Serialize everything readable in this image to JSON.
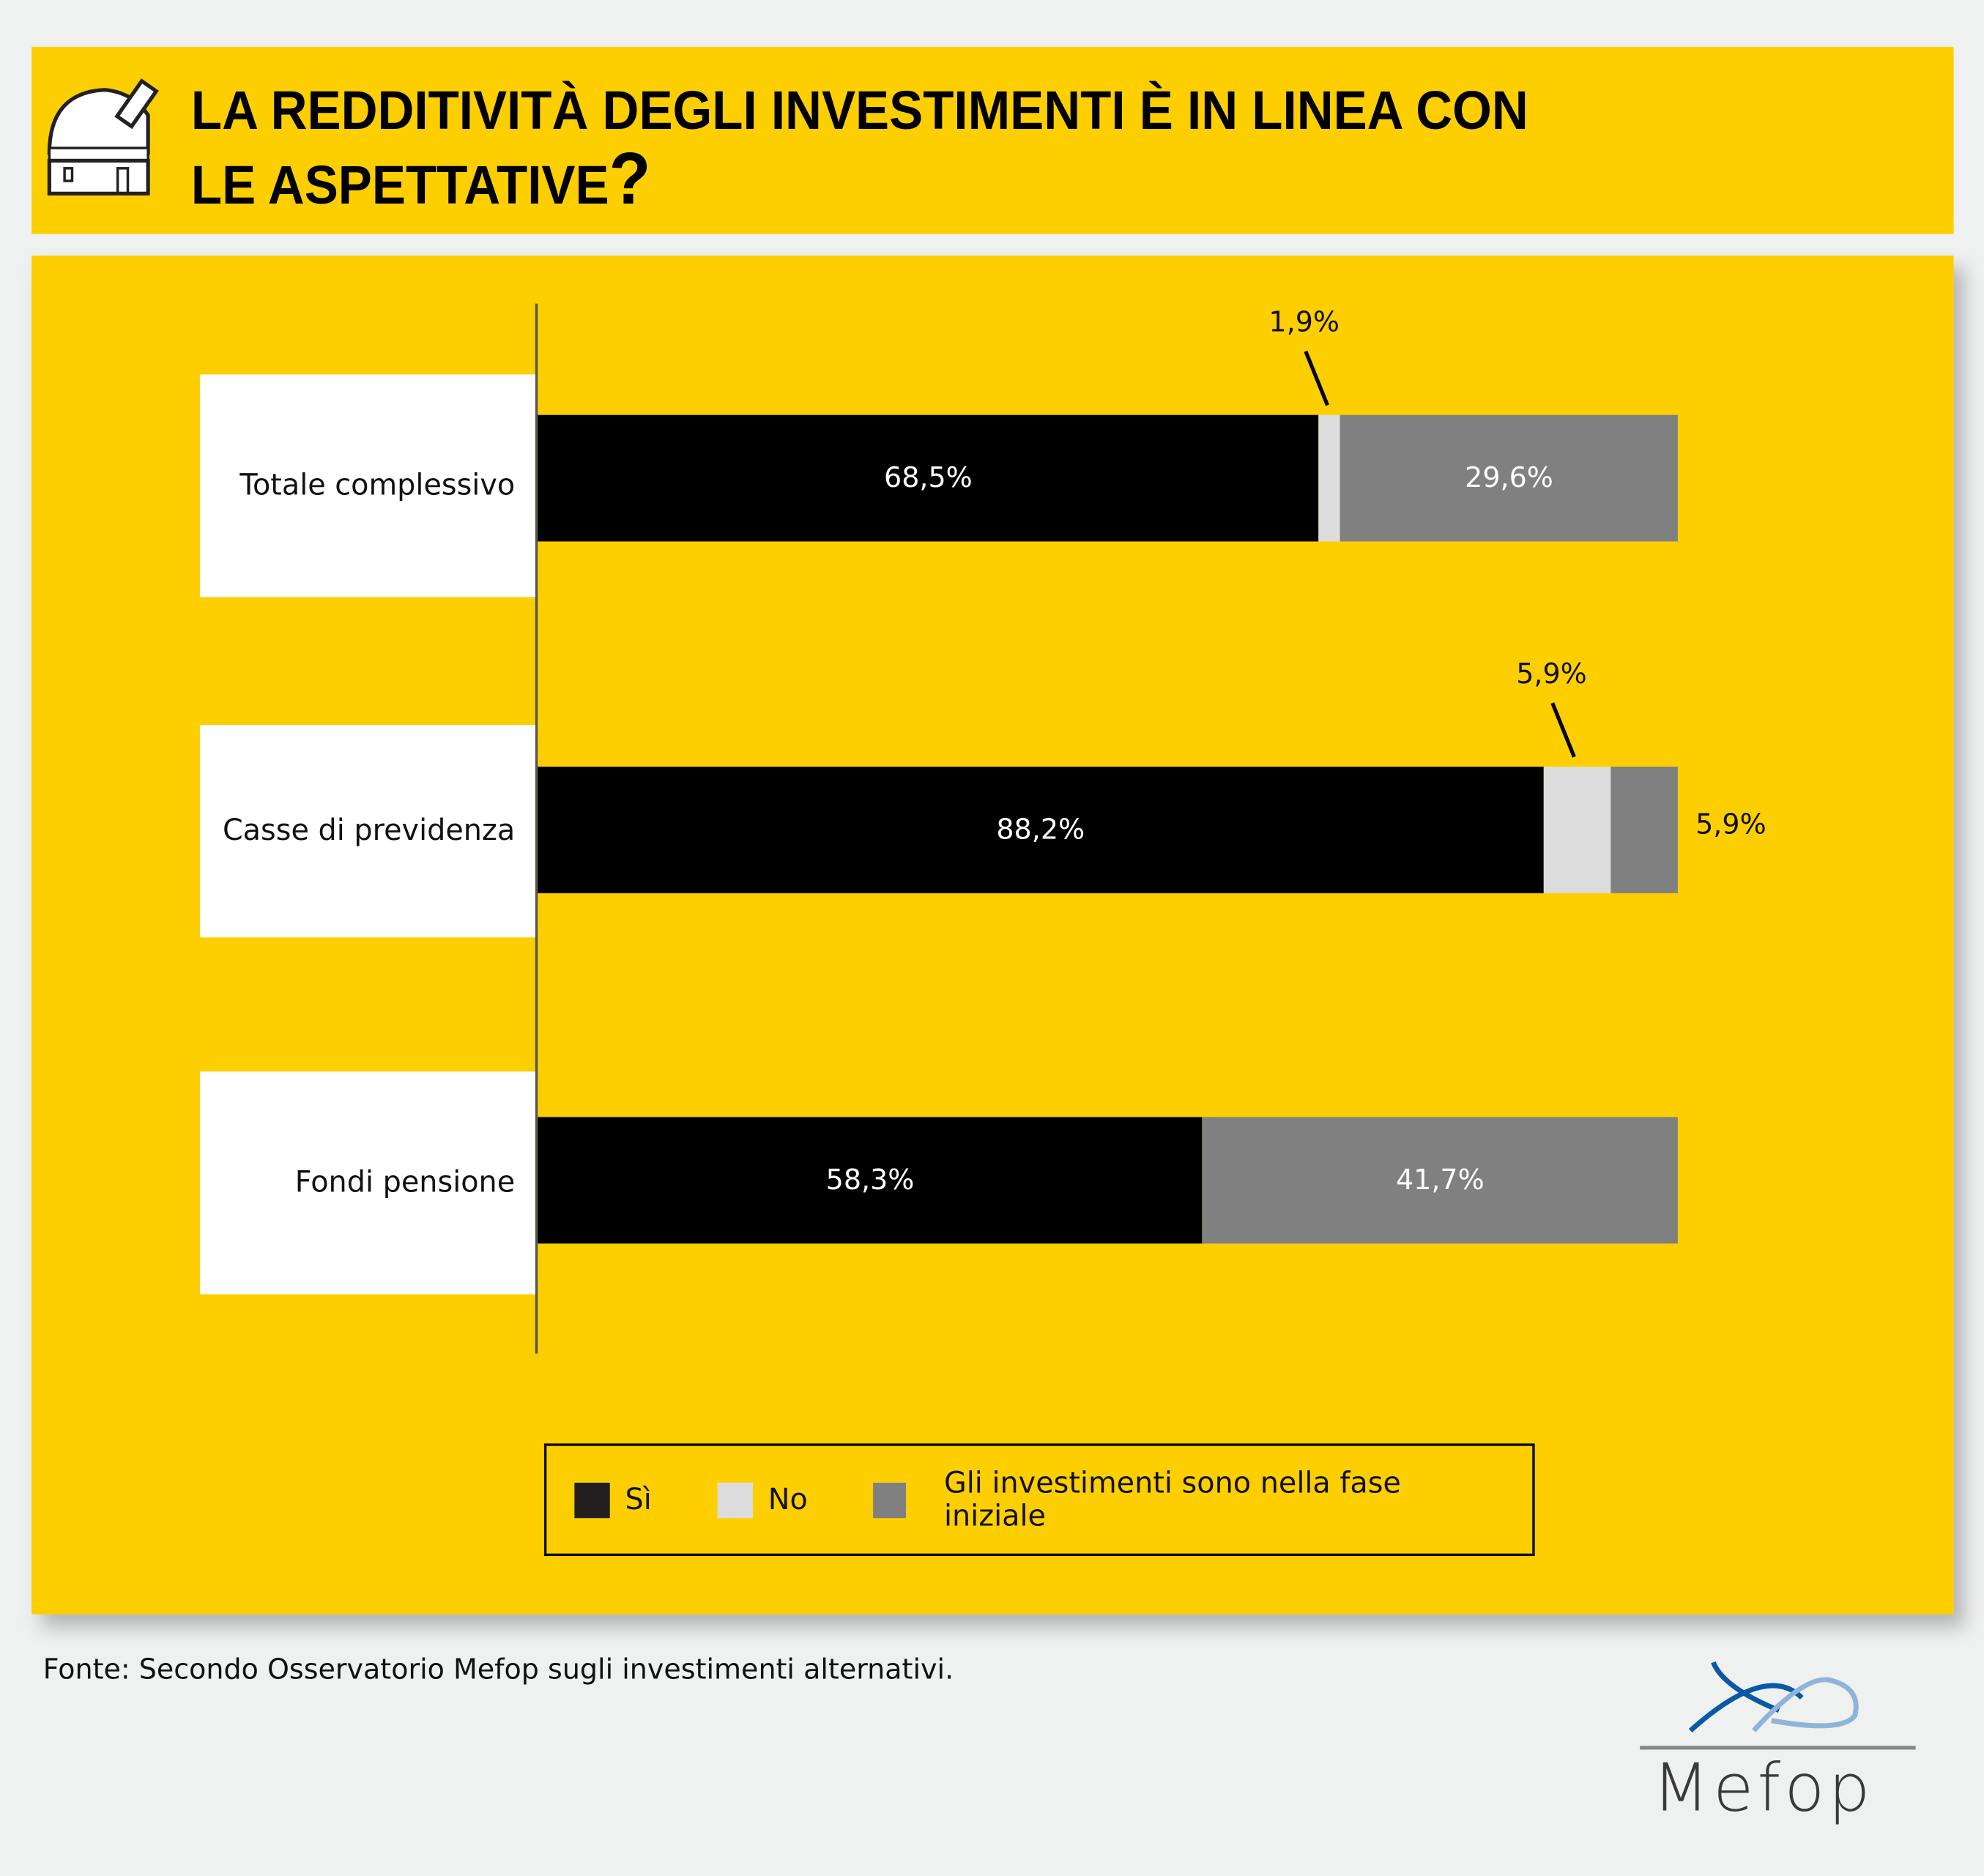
{
  "title": {
    "line1": "LA REDDITIVITÀ DEGLI INVESTIMENTI È IN LINEA CON",
    "line2": "LE ASPETTATIVE",
    "qmark": "?"
  },
  "colors": {
    "yellow": "#fecf00",
    "si": "#000000",
    "no": "#dcdcdc",
    "iniziale": "#808080"
  },
  "chart_data": {
    "type": "bar",
    "orientation": "horizontal-stacked",
    "categories": [
      "Totale complessivo",
      "Casse di previdenza",
      "Fondi pensione"
    ],
    "series": [
      {
        "name": "Sì",
        "values": [
          68.5,
          88.2,
          58.3
        ],
        "labels": [
          "68,5%",
          "88,2%",
          "58,3%"
        ]
      },
      {
        "name": "No",
        "values": [
          1.9,
          5.9,
          0
        ],
        "labels": [
          "1,9%",
          "5,9%",
          ""
        ]
      },
      {
        "name": "Gli investimenti sono nella fase iniziale",
        "values": [
          29.6,
          5.9,
          41.7
        ],
        "labels": [
          "29,6%",
          "5,9%",
          "41,7%"
        ]
      }
    ],
    "xlim": [
      0,
      100
    ]
  },
  "legend": [
    "Sì",
    "No",
    "Gli investimenti sono nella fase iniziale"
  ],
  "source": "Fonte: Secondo Osservatorio Mefop sugli investimenti alternativi.",
  "logo": "Mefop"
}
